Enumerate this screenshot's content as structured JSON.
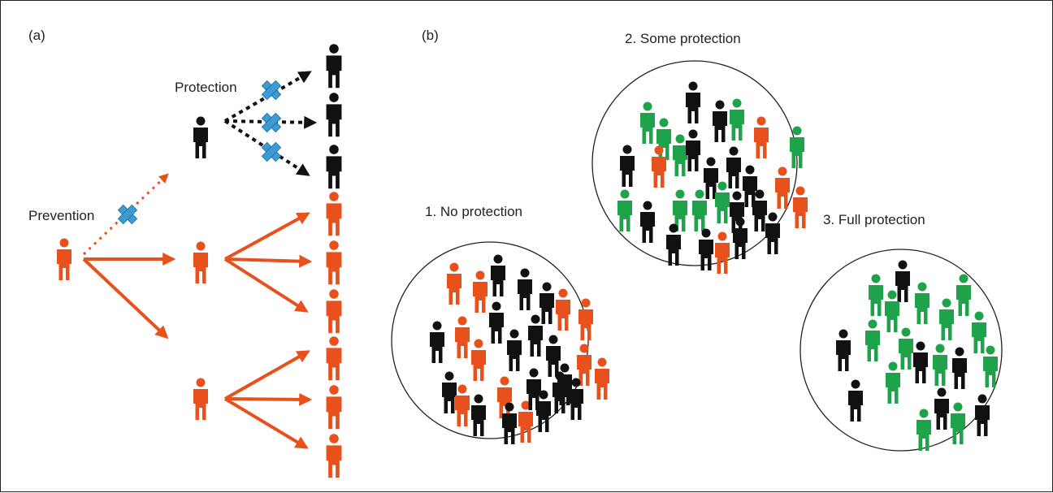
{
  "colors": {
    "infected": "#e8501c",
    "susceptible": "#111111",
    "protected": "#1fa34a",
    "block": "#3b9bd2",
    "circle_stroke": "#222222"
  },
  "icons": {
    "person": "person-icon",
    "block": "blue-cross-icon"
  },
  "panel_a": {
    "tag": "(a)",
    "prevention_label": "Prevention",
    "protection_label": "Protection"
  },
  "panel_b": {
    "tag": "(b)",
    "groups": [
      {
        "label": "1. No protection"
      },
      {
        "label": "2. Some protection"
      },
      {
        "label": "3. Full protection"
      }
    ]
  }
}
